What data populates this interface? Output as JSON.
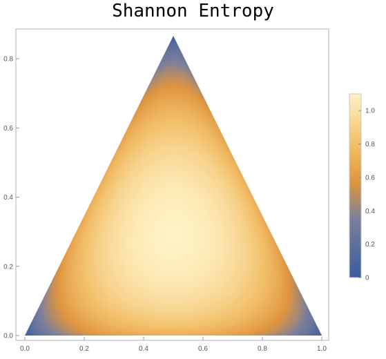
{
  "chart_data": {
    "type": "heatmap",
    "title": "Shannon Entropy",
    "xlabel": "",
    "ylabel": "",
    "xlim": [
      0.0,
      1.0
    ],
    "ylim": [
      0.0,
      0.866
    ],
    "x_ticks": [
      "0.0",
      "0.2",
      "0.4",
      "0.6",
      "0.8",
      "1.0"
    ],
    "y_ticks": [
      "0.0",
      "0.2",
      "0.4",
      "0.6",
      "0.8"
    ],
    "region": {
      "shape": "equilateral triangle",
      "vertices": [
        [
          0.0,
          0.0
        ],
        [
          1.0,
          0.0
        ],
        [
          0.5,
          0.866
        ]
      ]
    },
    "color_value": "Shannon entropy (natural log) of the barycentric coordinates",
    "value_range": [
      0.0,
      1.0986
    ],
    "colorbar": {
      "ticks": [
        "0",
        "0.2",
        "0.4",
        "0.6",
        "0.8",
        "1.0"
      ],
      "range": [
        0.0,
        1.1
      ]
    },
    "colorscale": [
      "#3a5c9f",
      "#7c7f9b",
      "#e0953f",
      "#f2be68",
      "#fff2c4"
    ],
    "grid": false,
    "legend": "colorbar-right"
  }
}
